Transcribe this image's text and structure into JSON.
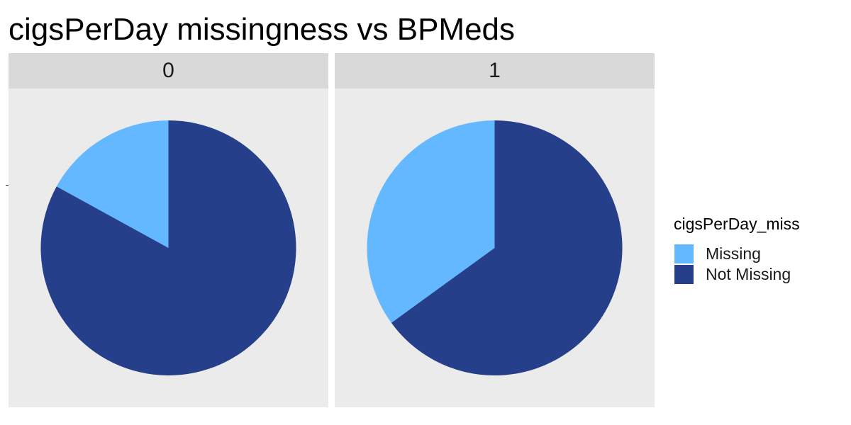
{
  "chart_data": {
    "type": "pie",
    "title": "cigsPerDay missingness vs BPMeds",
    "facets": [
      {
        "label": "0",
        "slices": [
          {
            "name": "Missing",
            "value": 0.17
          },
          {
            "name": "Not Missing",
            "value": 0.83
          }
        ]
      },
      {
        "label": "1",
        "slices": [
          {
            "name": "Missing",
            "value": 0.35
          },
          {
            "name": "Not Missing",
            "value": 0.65
          }
        ]
      }
    ],
    "legend": {
      "title": "cigsPerDay_miss",
      "position": "right",
      "entries": [
        {
          "name": "Missing",
          "color": "#63b8ff"
        },
        {
          "name": "Not Missing",
          "color": "#263f8a"
        }
      ]
    },
    "grid": false
  }
}
